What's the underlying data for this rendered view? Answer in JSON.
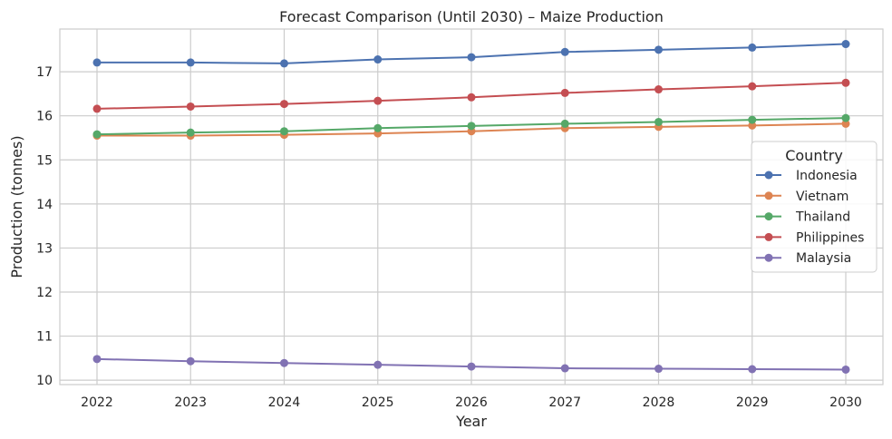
{
  "chart_data": {
    "type": "line",
    "title": "Forecast Comparison (Until 2030) – Maize Production",
    "xlabel": "Year",
    "ylabel": "Production (tonnes)",
    "x": [
      "2022",
      "2023",
      "2024",
      "2025",
      "2026",
      "2027",
      "2028",
      "2029",
      "2030"
    ],
    "ylim": [
      9.9,
      17.97
    ],
    "yticks": [
      "10",
      "11",
      "12",
      "13",
      "14",
      "15",
      "16",
      "17"
    ],
    "grid": true,
    "legend": {
      "title": "Country",
      "placement": "center-right"
    },
    "series": [
      {
        "name": "Indonesia",
        "color": "#4c72b0",
        "values": [
          17.21,
          17.21,
          17.19,
          17.28,
          17.33,
          17.45,
          17.5,
          17.55,
          17.63
        ]
      },
      {
        "name": "Vietnam",
        "color": "#dd8452",
        "values": [
          15.55,
          15.55,
          15.57,
          15.6,
          15.65,
          15.72,
          15.75,
          15.78,
          15.82
        ]
      },
      {
        "name": "Thailand",
        "color": "#55a868",
        "values": [
          15.58,
          15.62,
          15.65,
          15.72,
          15.77,
          15.82,
          15.86,
          15.91,
          15.95
        ]
      },
      {
        "name": "Philippines",
        "color": "#c44e52",
        "values": [
          16.16,
          16.21,
          16.27,
          16.34,
          16.42,
          16.52,
          16.6,
          16.67,
          16.75
        ]
      },
      {
        "name": "Malaysia",
        "color": "#8172b3",
        "values": [
          10.48,
          10.43,
          10.39,
          10.35,
          10.31,
          10.27,
          10.26,
          10.25,
          10.24
        ]
      }
    ]
  }
}
